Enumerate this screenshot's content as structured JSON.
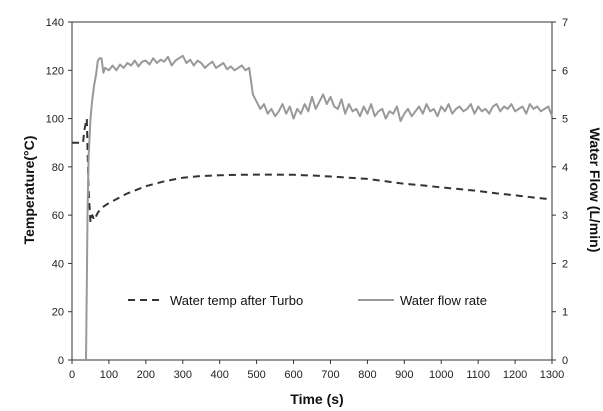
{
  "chart_data": {
    "type": "line",
    "xlabel": "Time (s)",
    "ylabel": "Temperature(°C)",
    "y2label": "Water Flow (L/min)",
    "xlim": [
      0,
      1300
    ],
    "ylim": [
      0,
      140
    ],
    "y2lim": [
      0,
      7
    ],
    "xticks": [
      "0",
      "100",
      "200",
      "300",
      "400",
      "500",
      "600",
      "700",
      "800",
      "900",
      "1000",
      "1100",
      "1200",
      "1300"
    ],
    "yticks": [
      "0",
      "20",
      "40",
      "60",
      "80",
      "100",
      "120",
      "140"
    ],
    "y2ticks": [
      "0",
      "1",
      "2",
      "3",
      "4",
      "5",
      "6",
      "7"
    ],
    "grid": false,
    "legend_position": "lower-center",
    "series": [
      {
        "name": "Water temp after Turbo",
        "axis": "left",
        "style": "dashed",
        "color": "#333333",
        "x": [
          0,
          30,
          33,
          40,
          45,
          50,
          55,
          60,
          70,
          80,
          100,
          150,
          200,
          250,
          300,
          350,
          400,
          450,
          500,
          550,
          600,
          650,
          700,
          750,
          800,
          850,
          900,
          950,
          1000,
          1050,
          1100,
          1150,
          1200,
          1250,
          1300
        ],
        "y": [
          90,
          90,
          95,
          100,
          70,
          57,
          60,
          58,
          61,
          63,
          65,
          69,
          72,
          74,
          75.5,
          76.2,
          76.5,
          76.7,
          76.8,
          76.8,
          76.7,
          76.4,
          76,
          75.5,
          75,
          74,
          73,
          72.3,
          71.5,
          70.8,
          70,
          69,
          68.2,
          67.3,
          66.5
        ]
      },
      {
        "name": "Water flow rate",
        "axis": "right",
        "style": "solid",
        "color": "#999999",
        "x": [
          38,
          40,
          42,
          45,
          50,
          55,
          60,
          65,
          70,
          75,
          80,
          85,
          90,
          100,
          110,
          120,
          130,
          140,
          150,
          160,
          170,
          180,
          190,
          200,
          210,
          220,
          230,
          240,
          250,
          260,
          270,
          280,
          290,
          300,
          310,
          320,
          330,
          340,
          350,
          360,
          370,
          380,
          390,
          400,
          410,
          420,
          430,
          440,
          450,
          460,
          470,
          480,
          490,
          500,
          510,
          520,
          530,
          540,
          550,
          560,
          570,
          580,
          590,
          600,
          610,
          620,
          630,
          640,
          650,
          660,
          670,
          680,
          690,
          700,
          710,
          720,
          730,
          740,
          750,
          760,
          770,
          780,
          790,
          800,
          810,
          820,
          830,
          840,
          850,
          860,
          870,
          880,
          890,
          900,
          910,
          920,
          930,
          940,
          950,
          960,
          970,
          980,
          990,
          1000,
          1010,
          1020,
          1030,
          1040,
          1050,
          1060,
          1070,
          1080,
          1090,
          1100,
          1110,
          1120,
          1130,
          1140,
          1150,
          1160,
          1170,
          1180,
          1190,
          1200,
          1210,
          1220,
          1230,
          1240,
          1250,
          1260,
          1270,
          1280,
          1290,
          1300
        ],
        "y": [
          0,
          1.5,
          3,
          4.2,
          5.0,
          5.4,
          5.7,
          5.9,
          6.2,
          6.25,
          6.25,
          5.95,
          6.05,
          6.0,
          6.1,
          6.0,
          6.12,
          6.05,
          6.15,
          6.1,
          6.2,
          6.08,
          6.18,
          6.2,
          6.12,
          6.25,
          6.15,
          6.22,
          6.18,
          6.28,
          6.1,
          6.2,
          6.25,
          6.3,
          6.15,
          6.22,
          6.1,
          6.2,
          6.15,
          6.05,
          6.12,
          6.18,
          6.05,
          6.1,
          6.15,
          6.02,
          6.08,
          6.0,
          6.05,
          6.1,
          6.0,
          6.05,
          5.5,
          5.35,
          5.2,
          5.3,
          5.1,
          5.2,
          5.05,
          5.15,
          5.3,
          5.1,
          5.25,
          5.0,
          5.2,
          5.1,
          5.3,
          5.15,
          5.45,
          5.2,
          5.35,
          5.5,
          5.3,
          5.45,
          5.25,
          5.2,
          5.4,
          5.1,
          5.3,
          5.15,
          5.2,
          5.05,
          5.25,
          5.1,
          5.3,
          5.05,
          5.15,
          5.2,
          5.0,
          5.15,
          5.1,
          5.25,
          4.95,
          5.1,
          5.2,
          5.05,
          5.15,
          5.25,
          5.1,
          5.3,
          5.15,
          5.2,
          5.05,
          5.25,
          5.15,
          5.3,
          5.1,
          5.2,
          5.25,
          5.15,
          5.2,
          5.3,
          5.1,
          5.25,
          5.15,
          5.2,
          5.1,
          5.25,
          5.3,
          5.15,
          5.25,
          5.2,
          5.3,
          5.15,
          5.2,
          5.25,
          5.1,
          5.3,
          5.2,
          5.25,
          5.15,
          5.2,
          5.25,
          5.05
        ]
      }
    ]
  }
}
